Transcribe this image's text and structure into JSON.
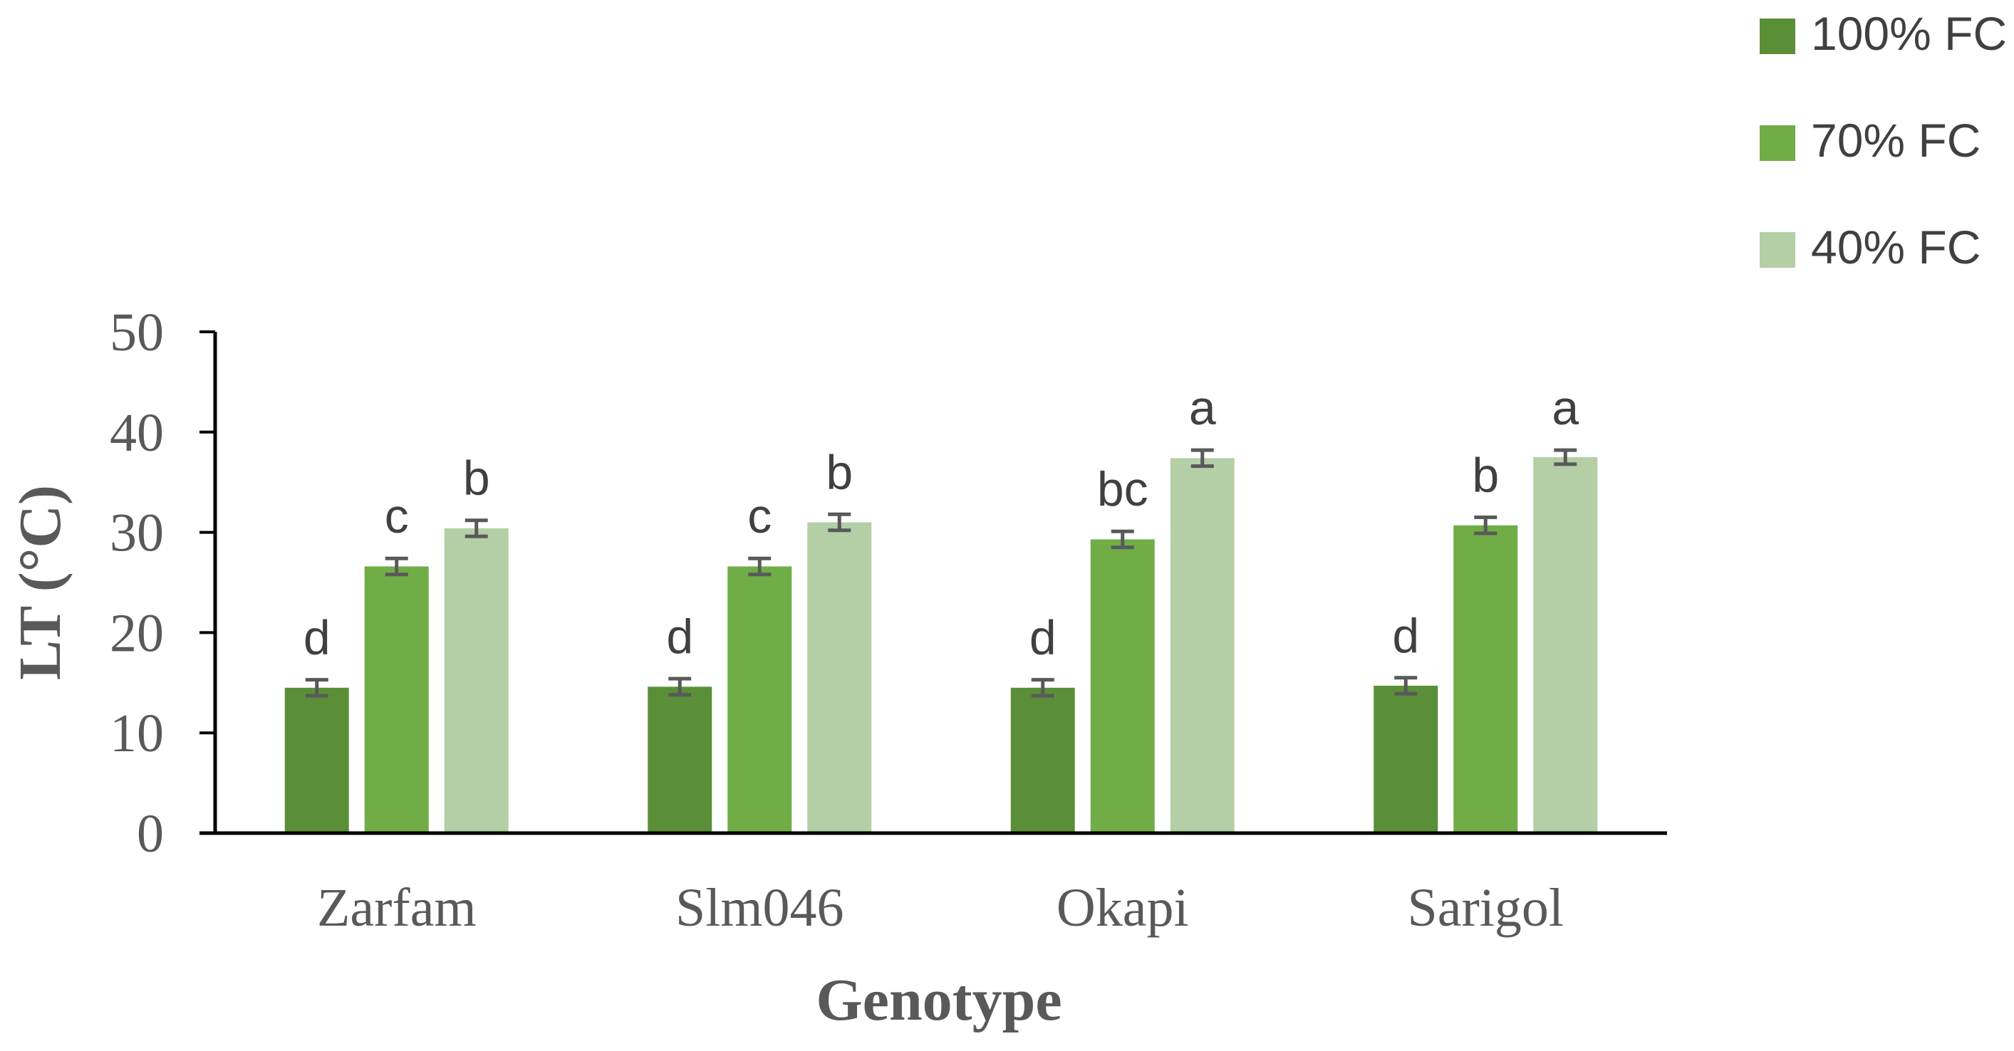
{
  "chart_data": {
    "type": "bar",
    "title": "",
    "xlabel": "Genotype",
    "ylabel": "LT (°C)",
    "ylim": [
      0,
      50
    ],
    "yticks": [
      "0",
      "10",
      "20",
      "30",
      "40",
      "50"
    ],
    "grid": false,
    "legend_position": "top-right",
    "categories": [
      "Zarfam",
      "Slm046",
      "Okapi",
      "Sarigol"
    ],
    "series": [
      {
        "name": "100% FC",
        "color": "#5a8f37",
        "values": [
          14.5,
          14.6,
          14.5,
          14.7
        ],
        "errors": [
          0.8,
          0.8,
          0.8,
          0.8
        ],
        "letters": [
          "d",
          "d",
          "d",
          "d"
        ]
      },
      {
        "name": "70% FC",
        "color": "#70ad47",
        "values": [
          26.6,
          26.6,
          29.3,
          30.7
        ],
        "errors": [
          0.8,
          0.8,
          0.8,
          0.8
        ],
        "letters": [
          "c",
          "c",
          "bc",
          "b"
        ]
      },
      {
        "name": "40% FC",
        "color": "#b4cfa5",
        "values": [
          30.4,
          31.0,
          37.4,
          37.5
        ],
        "errors": [
          0.8,
          0.8,
          0.8,
          0.7
        ],
        "letters": [
          "b",
          "b",
          "a",
          "a"
        ]
      }
    ],
    "error_bar_color": "#595959"
  }
}
